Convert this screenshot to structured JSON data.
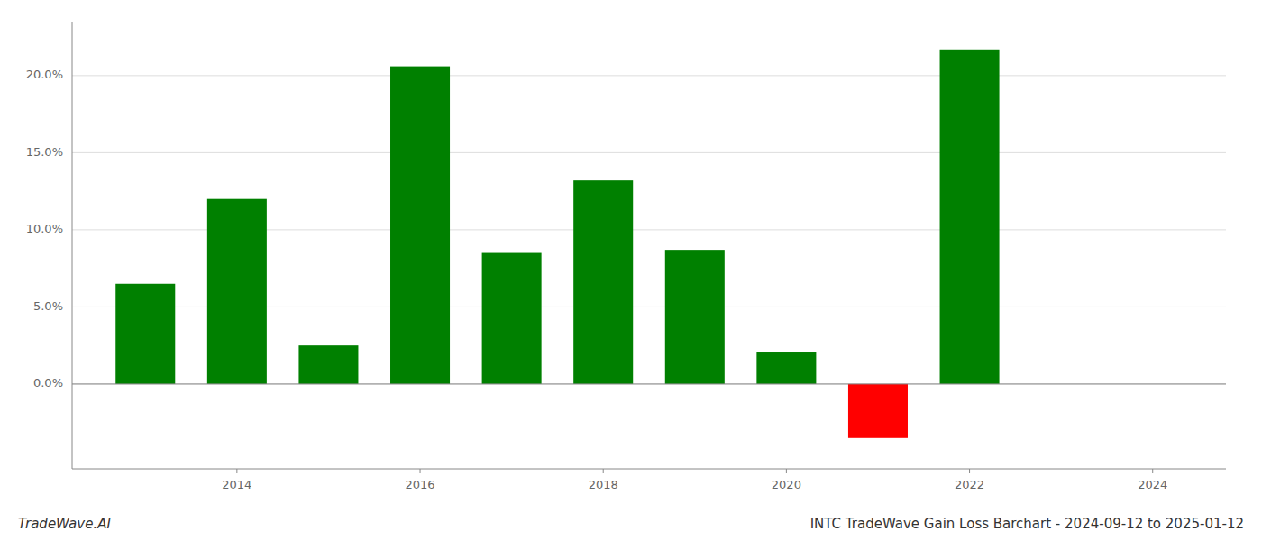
{
  "chart_data": {
    "type": "bar",
    "title": "INTC TradeWave Gain Loss Barchart - 2024-09-12 to 2025-01-12",
    "annotations": [
      "TradeWave.AI"
    ],
    "x": [
      2013,
      2014,
      2015,
      2016,
      2017,
      2018,
      2019,
      2020,
      2021,
      2022
    ],
    "values": [
      0.065,
      0.12,
      0.025,
      0.206,
      0.085,
      0.132,
      0.087,
      0.021,
      -0.035,
      0.217
    ],
    "colors": [
      "#008000",
      "#008000",
      "#008000",
      "#008000",
      "#008000",
      "#008000",
      "#008000",
      "#008000",
      "#ff0000",
      "#008000"
    ],
    "xlim": [
      2012.2,
      2024.8
    ],
    "ylim": [
      -0.055,
      0.235
    ],
    "xticks": [
      2014,
      2016,
      2018,
      2020,
      2022,
      2024
    ],
    "yticks": [
      {
        "value": 0.0,
        "label": "0.0%"
      },
      {
        "value": 0.05,
        "label": "5.0%"
      },
      {
        "value": 0.1,
        "label": "10.0%"
      },
      {
        "value": 0.15,
        "label": "15.0%"
      },
      {
        "value": 0.2,
        "label": "20.0%"
      }
    ],
    "grid": true
  }
}
